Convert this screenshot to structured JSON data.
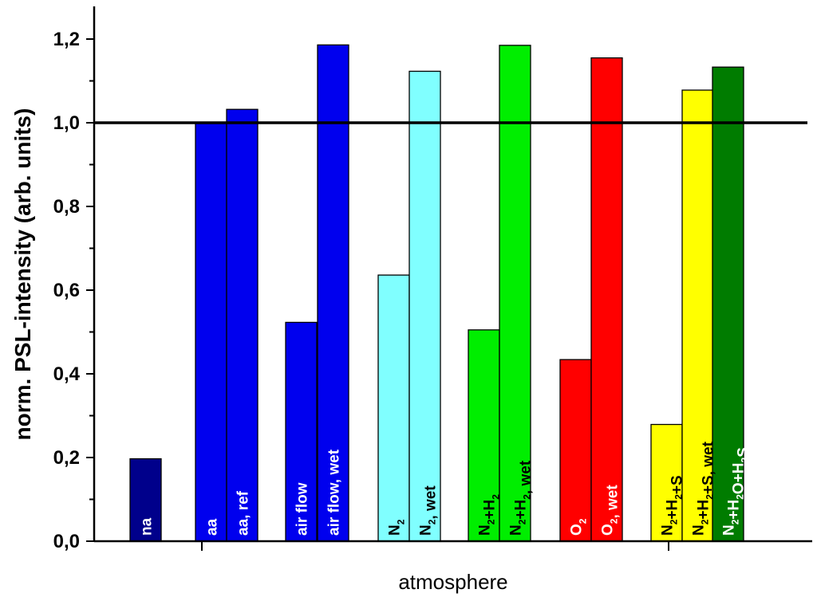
{
  "chart_data": {
    "type": "bar",
    "xlabel": "atmosphere",
    "ylabel": "norm. PSL-intensity (arb. units)",
    "ylim": [
      0.0,
      1.28
    ],
    "yticks": [
      "0,0",
      "0,2",
      "0,4",
      "0,6",
      "0,8",
      "1,0",
      "1,2"
    ],
    "reference_line": 1.0,
    "grid": false,
    "bars": [
      {
        "label": "na",
        "value": 0.197,
        "color": "#00008b",
        "label_color": "#ffffff"
      },
      {
        "label": "aa",
        "value": 1.0,
        "color": "#0000ee",
        "label_color": "#ffffff"
      },
      {
        "label": "aa, ref",
        "value": 1.032,
        "color": "#0000ee",
        "label_color": "#ffffff"
      },
      {
        "label": "air flow",
        "value": 0.523,
        "color": "#0000ee",
        "label_color": "#ffffff"
      },
      {
        "label": "air flow, wet",
        "value": 1.186,
        "color": "#0000ee",
        "label_color": "#ffffff"
      },
      {
        "label": "N2",
        "value": 0.636,
        "color": "#80ffff",
        "label_color": "#000000"
      },
      {
        "label": "N2, wet",
        "value": 1.123,
        "color": "#80ffff",
        "label_color": "#000000"
      },
      {
        "label": "N2+H2",
        "value": 0.505,
        "color": "#00ee00",
        "label_color": "#000000"
      },
      {
        "label": "N2+H2, wet",
        "value": 1.185,
        "color": "#00ee00",
        "label_color": "#000000"
      },
      {
        "label": "O2",
        "value": 0.434,
        "color": "#ff0000",
        "label_color": "#ffffff"
      },
      {
        "label": "O2, wet",
        "value": 1.155,
        "color": "#ff0000",
        "label_color": "#ffffff"
      },
      {
        "label": "N2+H2+S",
        "value": 0.279,
        "color": "#ffff00",
        "label_color": "#000000"
      },
      {
        "label": "N2+H2+S, wet",
        "value": 1.078,
        "color": "#ffff00",
        "label_color": "#000000"
      },
      {
        "label": "N2+H2O+H2S",
        "value": 1.133,
        "color": "#007c00",
        "label_color": "#ffffff"
      }
    ]
  }
}
